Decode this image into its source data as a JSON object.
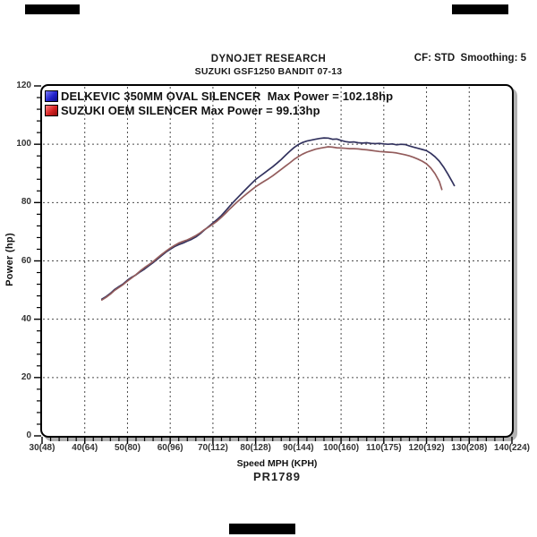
{
  "header": {
    "title": "DYNOJET RESEARCH",
    "subtitle": "SUZUKI GSF1250 BANDIT 07-13",
    "cf_smoothing": "CF: STD  Smoothing: 5"
  },
  "footer": {
    "run_number": "PR1789"
  },
  "legend": [
    {
      "label": "DELKEVIC 350MM OVAL SILENCER  Max Power = 102.18hp",
      "swatch_color": "#2222cc"
    },
    {
      "label": "SUZUKI OEM SILENCER Max Power = 99.13hp",
      "swatch_color": "#d42222"
    }
  ],
  "chart_data": {
    "type": "line",
    "title": "DYNOJET RESEARCH",
    "subtitle": "SUZUKI GSF1250 BANDIT 07-13",
    "xlabel": "Speed MPH (KPH)",
    "ylabel": "Power (hp)",
    "xlim": [
      30,
      140
    ],
    "ylim": [
      0,
      120
    ],
    "grid": "dashed",
    "legend_position": "top-left-inside",
    "grid_color": "#4a4a4a",
    "x_minor_step": 2,
    "y_minor_step": 4,
    "x_ticks": [
      {
        "mph": 30,
        "label": "30(48)"
      },
      {
        "mph": 40,
        "label": "40(64)"
      },
      {
        "mph": 50,
        "label": "50(80)"
      },
      {
        "mph": 60,
        "label": "60(96)"
      },
      {
        "mph": 70,
        "label": "70(112)"
      },
      {
        "mph": 80,
        "label": "80(128)"
      },
      {
        "mph": 90,
        "label": "90(144)"
      },
      {
        "mph": 100,
        "label": "100(160)"
      },
      {
        "mph": 110,
        "label": "110(175)"
      },
      {
        "mph": 120,
        "label": "120(192)"
      },
      {
        "mph": 130,
        "label": "130(208)"
      },
      {
        "mph": 140,
        "label": "140(224)"
      }
    ],
    "y_ticks": [
      {
        "hp": 0,
        "label": "0"
      },
      {
        "hp": 20,
        "label": "20"
      },
      {
        "hp": 40,
        "label": "40"
      },
      {
        "hp": 60,
        "label": "60"
      },
      {
        "hp": 80,
        "label": "80"
      },
      {
        "hp": 100,
        "label": "100"
      },
      {
        "hp": 120,
        "label": "120"
      }
    ],
    "series": [
      {
        "name": "DELKEVIC 350MM OVAL SILENCER",
        "max_power_hp": 102.18,
        "color": "#32325e",
        "points": [
          [
            44,
            46.9
          ],
          [
            45,
            47.8
          ],
          [
            46,
            48.9
          ],
          [
            47,
            50.2
          ],
          [
            48,
            51.2
          ],
          [
            49,
            52.1
          ],
          [
            50,
            53.4
          ],
          [
            51,
            54.4
          ],
          [
            52,
            55.2
          ],
          [
            53,
            56.3
          ],
          [
            54,
            57.2
          ],
          [
            55,
            58.3
          ],
          [
            56,
            59.4
          ],
          [
            57,
            60.6
          ],
          [
            58,
            61.8
          ],
          [
            59,
            63.0
          ],
          [
            60,
            64.0
          ],
          [
            61,
            64.9
          ],
          [
            62,
            65.6
          ],
          [
            63,
            66.1
          ],
          [
            64,
            66.8
          ],
          [
            65,
            67.4
          ],
          [
            66,
            68.2
          ],
          [
            67,
            69.3
          ],
          [
            68,
            70.6
          ],
          [
            69,
            71.8
          ],
          [
            70,
            73.0
          ],
          [
            71,
            74.2
          ],
          [
            72,
            75.6
          ],
          [
            73,
            77.2
          ],
          [
            74,
            78.9
          ],
          [
            75,
            80.5
          ],
          [
            76,
            82.0
          ],
          [
            77,
            83.5
          ],
          [
            78,
            85.0
          ],
          [
            79,
            86.5
          ],
          [
            80,
            87.9
          ],
          [
            81,
            89.0
          ],
          [
            82,
            90.1
          ],
          [
            83,
            91.2
          ],
          [
            84,
            92.3
          ],
          [
            85,
            93.5
          ],
          [
            86,
            94.8
          ],
          [
            87,
            96.2
          ],
          [
            88,
            97.6
          ],
          [
            89,
            98.9
          ],
          [
            90,
            99.9
          ],
          [
            91,
            100.6
          ],
          [
            92,
            101.1
          ],
          [
            93,
            101.4
          ],
          [
            94,
            101.7
          ],
          [
            95,
            102.0
          ],
          [
            96,
            102.18
          ],
          [
            97,
            102.1
          ],
          [
            98,
            101.7
          ],
          [
            99,
            101.8
          ],
          [
            100,
            101.3
          ],
          [
            101,
            100.9
          ],
          [
            102,
            100.7
          ],
          [
            103,
            100.8
          ],
          [
            104,
            100.5
          ],
          [
            105,
            100.4
          ],
          [
            106,
            100.5
          ],
          [
            107,
            100.3
          ],
          [
            108,
            100.2
          ],
          [
            109,
            100.3
          ],
          [
            110,
            100.1
          ],
          [
            111,
            100.0
          ],
          [
            112,
            100.1
          ],
          [
            113,
            99.8
          ],
          [
            114,
            100.0
          ],
          [
            115,
            99.9
          ],
          [
            116,
            99.4
          ],
          [
            117,
            99.0
          ],
          [
            118,
            98.6
          ],
          [
            119,
            98.2
          ],
          [
            120,
            97.8
          ],
          [
            121,
            96.9
          ],
          [
            122,
            95.7
          ],
          [
            123,
            94.2
          ],
          [
            124,
            92.2
          ],
          [
            125,
            89.8
          ],
          [
            126,
            87.2
          ],
          [
            126.5,
            85.8
          ]
        ]
      },
      {
        "name": "SUZUKI OEM SILENCER",
        "max_power_hp": 99.13,
        "color": "#935c5c",
        "points": [
          [
            44,
            46.6
          ],
          [
            45,
            47.5
          ],
          [
            46,
            48.6
          ],
          [
            47,
            49.9
          ],
          [
            48,
            50.9
          ],
          [
            49,
            51.9
          ],
          [
            50,
            53.1
          ],
          [
            51,
            54.2
          ],
          [
            52,
            55.3
          ],
          [
            53,
            56.6
          ],
          [
            54,
            57.7
          ],
          [
            55,
            58.7
          ],
          [
            56,
            59.8
          ],
          [
            57,
            61.0
          ],
          [
            58,
            62.2
          ],
          [
            59,
            63.3
          ],
          [
            60,
            64.4
          ],
          [
            61,
            65.3
          ],
          [
            62,
            66.1
          ],
          [
            63,
            66.7
          ],
          [
            64,
            67.2
          ],
          [
            65,
            67.9
          ],
          [
            66,
            68.7
          ],
          [
            67,
            69.6
          ],
          [
            68,
            70.7
          ],
          [
            69,
            71.6
          ],
          [
            70,
            72.6
          ],
          [
            71,
            73.7
          ],
          [
            72,
            75.0
          ],
          [
            73,
            76.4
          ],
          [
            74,
            77.9
          ],
          [
            75,
            79.3
          ],
          [
            76,
            80.6
          ],
          [
            77,
            81.9
          ],
          [
            78,
            83.1
          ],
          [
            79,
            84.3
          ],
          [
            80,
            85.4
          ],
          [
            81,
            86.4
          ],
          [
            82,
            87.3
          ],
          [
            83,
            88.2
          ],
          [
            84,
            89.2
          ],
          [
            85,
            90.3
          ],
          [
            86,
            91.4
          ],
          [
            87,
            92.5
          ],
          [
            88,
            93.6
          ],
          [
            89,
            94.8
          ],
          [
            90,
            95.8
          ],
          [
            91,
            96.6
          ],
          [
            92,
            97.3
          ],
          [
            93,
            97.8
          ],
          [
            94,
            98.3
          ],
          [
            95,
            98.6
          ],
          [
            96,
            98.9
          ],
          [
            97,
            99.13
          ],
          [
            98,
            99.0
          ],
          [
            99,
            98.8
          ],
          [
            100,
            98.7
          ],
          [
            101,
            98.6
          ],
          [
            102,
            98.5
          ],
          [
            103,
            98.5
          ],
          [
            104,
            98.4
          ],
          [
            105,
            98.2
          ],
          [
            106,
            98.1
          ],
          [
            107,
            97.9
          ],
          [
            108,
            97.7
          ],
          [
            109,
            97.5
          ],
          [
            110,
            97.4
          ],
          [
            111,
            97.3
          ],
          [
            112,
            97.2
          ],
          [
            113,
            97.0
          ],
          [
            114,
            96.7
          ],
          [
            115,
            96.4
          ],
          [
            116,
            96.0
          ],
          [
            117,
            95.5
          ],
          [
            118,
            94.9
          ],
          [
            119,
            94.2
          ],
          [
            120,
            93.3
          ],
          [
            121,
            91.9
          ],
          [
            122,
            89.9
          ],
          [
            123,
            87.2
          ],
          [
            123.6,
            84.5
          ]
        ]
      }
    ]
  }
}
